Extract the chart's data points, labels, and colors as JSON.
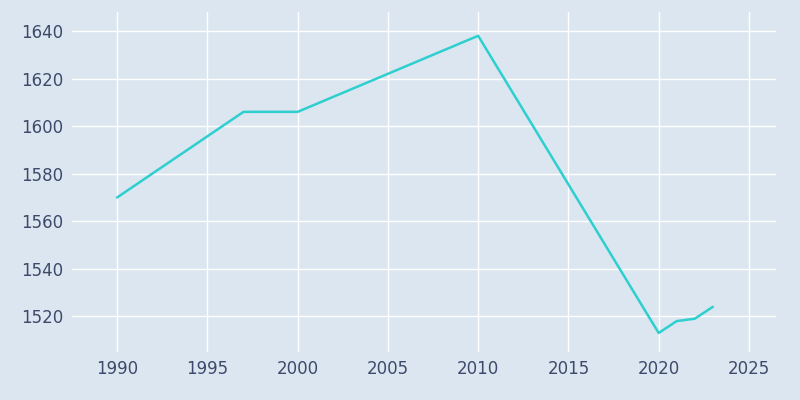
{
  "years": [
    1990,
    1997,
    2000,
    2010,
    2020,
    2021,
    2022,
    2023
  ],
  "population": [
    1570,
    1606,
    1606,
    1638,
    1513,
    1518,
    1519,
    1524
  ],
  "line_color": "#2ecfcf",
  "line_width": 1.8,
  "background_color": "#dce6f0",
  "grid_color": "#ffffff",
  "xlim": [
    1987.5,
    2026.5
  ],
  "ylim": [
    1505,
    1648
  ],
  "xticks": [
    1990,
    1995,
    2000,
    2005,
    2010,
    2015,
    2020,
    2025
  ],
  "yticks": [
    1520,
    1540,
    1560,
    1580,
    1600,
    1620,
    1640
  ],
  "tick_fontsize": 12,
  "tick_color": "#3d4a6b",
  "figure_bg": "#dce6f0"
}
